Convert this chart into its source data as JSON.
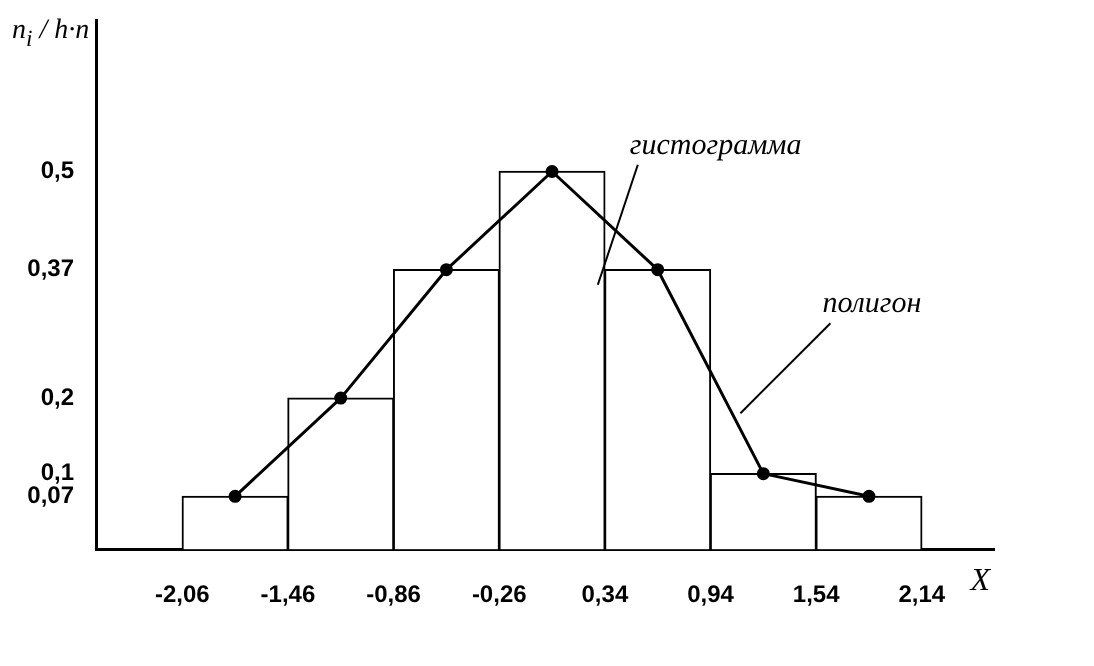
{
  "chart_data": {
    "type": "histogram",
    "xlabel": "X",
    "ylabel": "n$_{i}$ / h·n",
    "bins": [
      -2.06,
      -1.46,
      -0.86,
      -0.26,
      0.34,
      0.94,
      1.54,
      2.14
    ],
    "values": [
      0.07,
      0.2,
      0.37,
      0.5,
      0.37,
      0.1,
      0.07
    ],
    "color": "#ffffff",
    "series": [
      {
        "type": "line",
        "color": "#000000",
        "x": [
          -1.76,
          -1.16,
          -0.56,
          0.04,
          0.64,
          1.24,
          1.84
        ],
        "values": [
          0.07,
          0.2,
          0.37,
          0.5,
          0.37,
          0.1,
          0.07
        ]
      }
    ],
    "marker": "circle",
    "grid": false,
    "legend": false,
    "xlim": [
      -2.55,
      2.55
    ],
    "ylim": [
      0,
      0.7
    ],
    "xticks": [
      {
        "value": -2.06,
        "label": "-2,06"
      },
      {
        "value": -1.46,
        "label": "-1,46"
      },
      {
        "value": -0.86,
        "label": "-0,86"
      },
      {
        "value": -0.26,
        "label": "-0,26"
      },
      {
        "value": 0.34,
        "label": "0,34"
      },
      {
        "value": 0.94,
        "label": "0,94"
      },
      {
        "value": 1.54,
        "label": "1,54"
      },
      {
        "value": 2.14,
        "label": "2,14"
      }
    ],
    "yticks": [
      {
        "value": 0.07,
        "label": "0,07"
      },
      {
        "value": 0.1,
        "label": "0,1"
      },
      {
        "value": 0.2,
        "label": "0,2"
      },
      {
        "value": 0.37,
        "label": "0,37"
      },
      {
        "value": 0.5,
        "label": "0,5"
      }
    ],
    "annotations": [
      {
        "text": "гистограмма",
        "x": 0.3,
        "y": 0.35
      },
      {
        "text": "полигон",
        "x": 1.11,
        "y": 0.18
      }
    ]
  }
}
